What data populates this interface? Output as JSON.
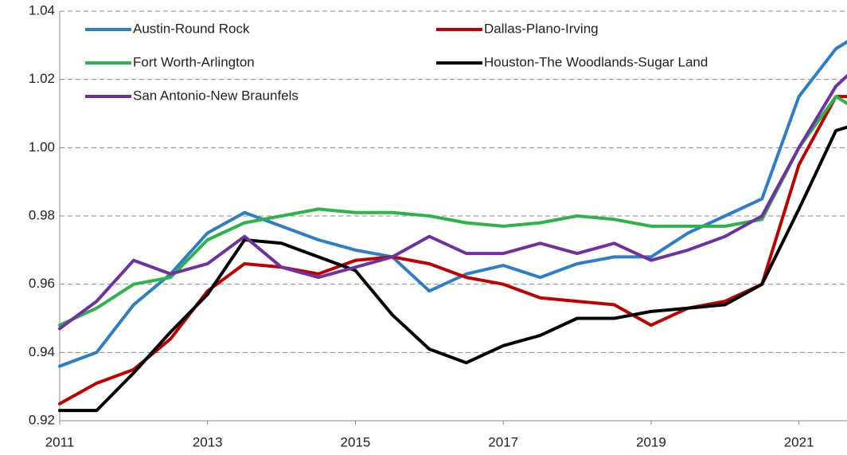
{
  "chart_data": {
    "type": "line",
    "x": [
      2011,
      2011.5,
      2012,
      2012.5,
      2013,
      2013.5,
      2014,
      2014.5,
      2015,
      2015.5,
      2016,
      2016.5,
      2017,
      2017.5,
      2018,
      2018.5,
      2019,
      2019.5,
      2020,
      2020.5,
      2021,
      2021.5,
      2021.65
    ],
    "series": [
      {
        "name": "Austin-Round Rock",
        "color": "#2e7ec5",
        "values": [
          0.936,
          0.94,
          0.954,
          0.963,
          0.975,
          0.981,
          0.977,
          0.973,
          0.97,
          0.968,
          0.958,
          0.963,
          0.9655,
          0.962,
          0.966,
          0.968,
          0.968,
          0.975,
          0.98,
          0.985,
          1.015,
          1.029,
          1.031
        ]
      },
      {
        "name": "Dallas-Plano-Irving",
        "color": "#c00000",
        "values": [
          0.925,
          0.931,
          0.935,
          0.944,
          0.958,
          0.966,
          0.965,
          0.963,
          0.967,
          0.968,
          0.966,
          0.962,
          0.96,
          0.956,
          0.955,
          0.954,
          0.948,
          0.953,
          0.955,
          0.96,
          0.995,
          1.015,
          1.015
        ]
      },
      {
        "name": "Fort Worth-Arlington",
        "color": "#2db34a",
        "values": [
          0.948,
          0.953,
          0.96,
          0.962,
          0.973,
          0.978,
          0.98,
          0.982,
          0.981,
          0.981,
          0.98,
          0.978,
          0.977,
          0.978,
          0.98,
          0.979,
          0.977,
          0.977,
          0.977,
          0.979,
          1.0,
          1.015,
          1.013
        ]
      },
      {
        "name": "Houston-The Woodlands-Sugar Land",
        "color": "#000000",
        "values": [
          0.923,
          0.923,
          0.934,
          0.946,
          0.957,
          0.973,
          0.972,
          0.968,
          0.964,
          0.951,
          0.941,
          0.937,
          0.942,
          0.945,
          0.95,
          0.95,
          0.952,
          0.953,
          0.954,
          0.96,
          0.982,
          1.005,
          1.006
        ]
      },
      {
        "name": "San Antonio-New Braunfels",
        "color": "#7030a0",
        "values": [
          0.947,
          0.955,
          0.967,
          0.963,
          0.966,
          0.974,
          0.965,
          0.962,
          0.965,
          0.968,
          0.974,
          0.969,
          0.969,
          0.972,
          0.969,
          0.972,
          0.967,
          0.97,
          0.974,
          0.98,
          1.0,
          1.018,
          1.021
        ]
      }
    ],
    "xlim": [
      2011,
      2021.65
    ],
    "xticks": [
      2011,
      2013,
      2015,
      2017,
      2019,
      2021
    ],
    "ylim": [
      0.92,
      1.04
    ],
    "yticks": [
      0.92,
      0.94,
      0.96,
      0.98,
      {
        "value": 1,
        "label": "1.00"
      },
      1.02,
      1.04
    ],
    "grid": true
  }
}
